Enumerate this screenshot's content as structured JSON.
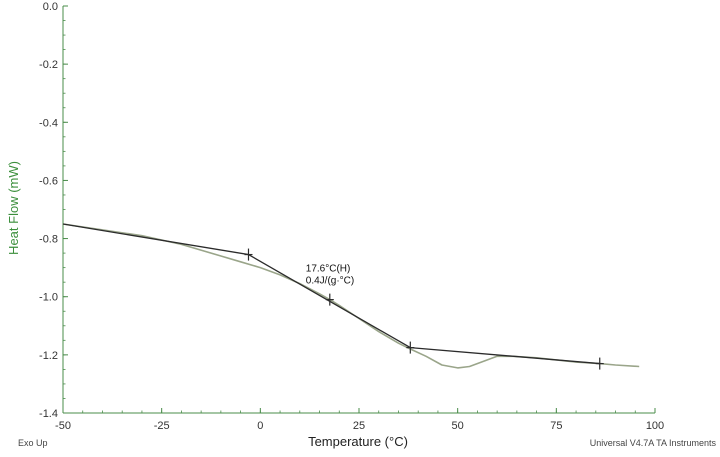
{
  "chart_data": {
    "type": "line",
    "title": "",
    "xlabel": "Temperature (°C)",
    "ylabel": "Heat Flow (mW)",
    "xlim": [
      -50,
      100
    ],
    "ylim": [
      -1.4,
      0.0
    ],
    "x_ticks": [
      -50,
      -25,
      0,
      25,
      50,
      75,
      100
    ],
    "x_tick_labels": [
      "-50",
      "-25",
      "0",
      "25",
      "50",
      "75",
      "100"
    ],
    "y_ticks": [
      0.0,
      -0.2,
      -0.4,
      -0.6,
      -0.8,
      -1.0,
      -1.2,
      -1.4
    ],
    "y_tick_labels": [
      "0.0",
      "-0.2",
      "-0.4",
      "-0.6",
      "-0.8",
      "-1.0",
      "-1.2",
      "-1.4"
    ],
    "grid": false,
    "series": [
      {
        "role": "measured-curve",
        "color": "#9aa58a",
        "x": [
          -50,
          -30,
          -20,
          -10,
          -5,
          0,
          5,
          10,
          15,
          17.6,
          20,
          25,
          30,
          35,
          38,
          42,
          46,
          50,
          53,
          56,
          60,
          64,
          70,
          80,
          86,
          90,
          96
        ],
        "y": [
          -0.75,
          -0.79,
          -0.82,
          -0.86,
          -0.88,
          -0.9,
          -0.925,
          -0.955,
          -0.99,
          -1.01,
          -1.03,
          -1.075,
          -1.12,
          -1.16,
          -1.18,
          -1.205,
          -1.235,
          -1.245,
          -1.24,
          -1.225,
          -1.205,
          -1.205,
          -1.21,
          -1.225,
          -1.23,
          -1.235,
          -1.24
        ]
      },
      {
        "role": "tangent-lines",
        "color": "#2b2b2b",
        "segments": [
          {
            "x": [
              -50,
              -3
            ],
            "y": [
              -0.75,
              -0.855
            ]
          },
          {
            "x": [
              -3,
              38
            ],
            "y": [
              -0.855,
              -1.175
            ]
          },
          {
            "x": [
              38,
              86
            ],
            "y": [
              -1.175,
              -1.23
            ]
          }
        ]
      }
    ],
    "markers": [
      {
        "x": -3,
        "y": -0.855
      },
      {
        "x": 17.6,
        "y": -1.01
      },
      {
        "x": 38,
        "y": -1.175
      },
      {
        "x": 86,
        "y": -1.23
      }
    ],
    "annotations": [
      {
        "x": 17.6,
        "y": -1.01,
        "lines": [
          "17.6°C(H)",
          "0.4J/(g·°C)"
        ]
      }
    ],
    "footer": {
      "left": "Exo Up",
      "right": "Universal V4.7A TA Instruments"
    },
    "colors": {
      "axis": "#4a8c4a",
      "ylabel": "#3c8f3c",
      "curve": "#9aa58a",
      "tangent": "#2b2b2b"
    }
  }
}
